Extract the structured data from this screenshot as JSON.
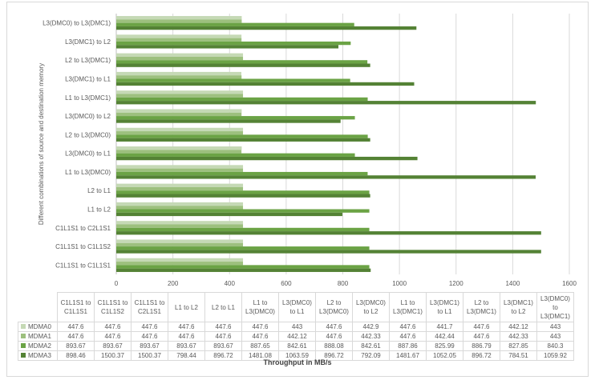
{
  "chart_data": {
    "type": "bar",
    "orientation": "horizontal",
    "title": "",
    "xlabel": "Throughput in MB/s",
    "ylabel": "Different  combinations of source and destination memory",
    "xlim": [
      0,
      1600
    ],
    "xticks": [
      0,
      200,
      400,
      600,
      800,
      1000,
      1200,
      1400,
      1600
    ],
    "grid": true,
    "legend": "table-bottom",
    "categories": [
      "C1L1S1 to C1L1S1",
      "C1L1S1 to C1L1S2",
      "C1L1S1 to C2L1S1",
      "L1 to L2",
      "L2 to L1",
      "L1 to L3(DMC0)",
      "L3(DMC0) to L1",
      "L2 to L3(DMC0)",
      "L3(DMC0) to L2",
      "L1 to L3(DMC1)",
      "L3(DMC1) to L1",
      "L2 to L3(DMC1)",
      "L3(DMC1) to L2",
      "L3(DMC0) to L3(DMC1)"
    ],
    "series": [
      {
        "name": "MDMA0",
        "color": "#c5d9b5",
        "values": [
          447.6,
          447.6,
          447.6,
          447.6,
          447.6,
          447.6,
          443,
          447.6,
          442.9,
          447.6,
          441.7,
          447.6,
          442.12,
          443
        ]
      },
      {
        "name": "MDMA1",
        "color": "#9dc07e",
        "values": [
          447.6,
          447.6,
          447.6,
          447.6,
          447.6,
          447.6,
          442.12,
          447.6,
          442.33,
          447.6,
          442.44,
          447.6,
          442.33,
          443
        ]
      },
      {
        "name": "MDMA2",
        "color": "#6ba345",
        "values": [
          893.67,
          893.67,
          893.67,
          893.67,
          893.67,
          887.65,
          842.61,
          888.08,
          842.61,
          887.86,
          825.99,
          886.79,
          827.85,
          840.3
        ]
      },
      {
        "name": "MDMA3",
        "color": "#548235",
        "values": [
          898.46,
          1500.37,
          1500.37,
          798.44,
          896.72,
          1481.08,
          1063.59,
          896.72,
          792.09,
          1481.67,
          1052.05,
          896.72,
          784.51,
          1059.92
        ]
      }
    ]
  }
}
